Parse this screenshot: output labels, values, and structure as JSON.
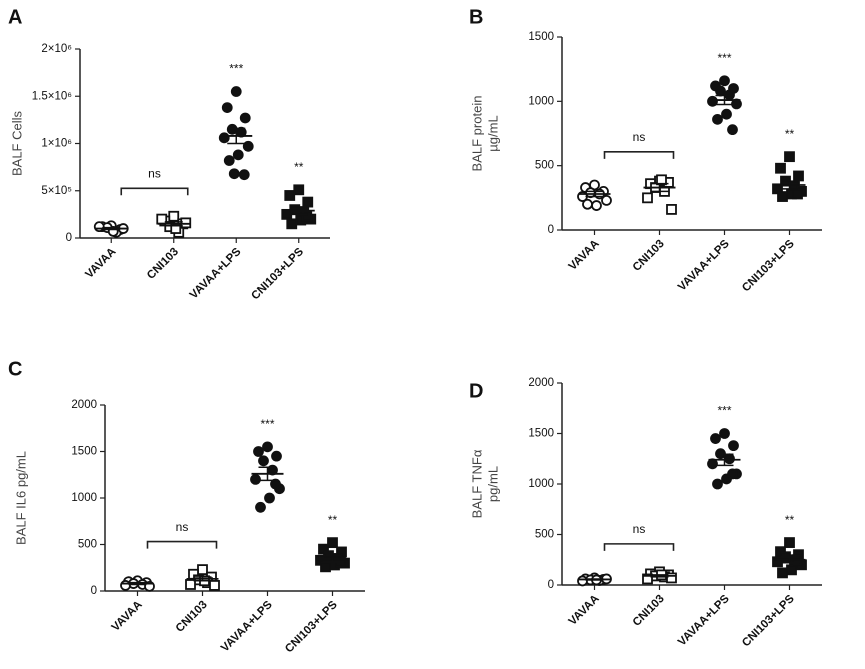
{
  "chart_data": [
    {
      "type": "dot",
      "panel": "A",
      "ylabel": [
        "BALF Cells"
      ],
      "categories": [
        "VAVAA",
        "CNI103",
        "VAVAA+LPS",
        "CNI103+LPS"
      ],
      "markers": [
        "circle-open",
        "square-open",
        "circle",
        "square"
      ],
      "points": [
        [
          130000,
          120000,
          90000,
          110000,
          60000,
          120000,
          100000,
          70000
        ],
        [
          230000,
          180000,
          150000,
          120000,
          60000,
          200000,
          160000,
          100000
        ],
        [
          1550000,
          1380000,
          1270000,
          1150000,
          1120000,
          1060000,
          970000,
          880000,
          820000,
          670000,
          680000
        ],
        [
          510000,
          450000,
          380000,
          300000,
          270000,
          250000,
          200000,
          190000,
          150000,
          230000
        ]
      ],
      "means": [
        100000,
        150000,
        1080000,
        290000
      ],
      "sems": [
        10000,
        20000,
        80000,
        40000
      ],
      "bracket_label": "ns",
      "stars": [
        null,
        null,
        "***",
        "**"
      ],
      "ylim": [
        0,
        2000000
      ],
      "yticks": [
        0,
        {
          "value": 500000,
          "label": "5×10⁵"
        },
        {
          "value": 1000000,
          "label": "1×10⁶"
        },
        {
          "value": 1500000,
          "label": "1.5×10⁶"
        },
        {
          "value": 2000000,
          "label": "2×10⁶"
        }
      ]
    },
    {
      "type": "dot",
      "panel": "B",
      "ylabel": [
        "BALF protein",
        "µg/mL"
      ],
      "categories": [
        "VAVAA",
        "CNI103",
        "VAVAA+LPS",
        "CNI103+LPS"
      ],
      "markers": [
        "circle-open",
        "square-open",
        "circle",
        "square"
      ],
      "points": [
        [
          350,
          330,
          300,
          290,
          280,
          260,
          230,
          190,
          200
        ],
        [
          380,
          360,
          370,
          330,
          300,
          250,
          160,
          390
        ],
        [
          1160,
          1120,
          1100,
          1080,
          1050,
          1000,
          980,
          900,
          860,
          780
        ],
        [
          570,
          480,
          420,
          380,
          340,
          320,
          300,
          280,
          260,
          280
        ]
      ],
      "means": [
        280,
        330,
        1010,
        350
      ],
      "sems": [
        20,
        30,
        35,
        30
      ],
      "bracket_label": "ns",
      "stars": [
        null,
        null,
        "***",
        "**"
      ],
      "ylim": [
        0,
        1500
      ],
      "yticks": [
        0,
        500,
        1000,
        1500
      ]
    },
    {
      "type": "dot",
      "panel": "C",
      "ylabel": [
        "BALF IL6 pg/mL"
      ],
      "categories": [
        "VAVAA",
        "CNI103",
        "VAVAA+LPS",
        "CNI103+LPS"
      ],
      "markers": [
        "circle-open",
        "square-open",
        "circle",
        "square"
      ],
      "points": [
        [
          110,
          100,
          90,
          80,
          70,
          60,
          50
        ],
        [
          230,
          180,
          150,
          120,
          90,
          70,
          60,
          110
        ],
        [
          1550,
          1500,
          1450,
          1400,
          1300,
          1200,
          1100,
          1000,
          900,
          1150
        ],
        [
          520,
          450,
          420,
          380,
          350,
          330,
          300,
          280,
          260,
          310
        ]
      ],
      "means": [
        80,
        130,
        1260,
        340
      ],
      "sems": [
        10,
        20,
        70,
        25
      ],
      "bracket_label": "ns",
      "stars": [
        null,
        null,
        "***",
        "**"
      ],
      "ylim": [
        0,
        2000
      ],
      "yticks": [
        0,
        500,
        1000,
        1500,
        2000
      ]
    },
    {
      "type": "dot",
      "panel": "D",
      "ylabel": [
        "BALF TNFα",
        "pg/mL"
      ],
      "categories": [
        "VAVAA",
        "CNI103",
        "VAVAA+LPS",
        "CNI103+LPS"
      ],
      "markers": [
        "circle-open",
        "square-open",
        "circle",
        "square"
      ],
      "points": [
        [
          70,
          60,
          55,
          50,
          45,
          40,
          60,
          50
        ],
        [
          130,
          110,
          100,
          90,
          80,
          60,
          70,
          100
        ],
        [
          1500,
          1450,
          1380,
          1300,
          1250,
          1200,
          1100,
          1050,
          1000,
          1100
        ],
        [
          420,
          330,
          300,
          280,
          250,
          230,
          200,
          150,
          120,
          250
        ]
      ],
      "means": [
        55,
        90,
        1240,
        250
      ],
      "sems": [
        5,
        10,
        55,
        30
      ],
      "bracket_label": "ns",
      "stars": [
        null,
        null,
        "***",
        "**"
      ],
      "ylim": [
        0,
        2000
      ],
      "yticks": [
        0,
        500,
        1000,
        1500,
        2000
      ]
    }
  ]
}
